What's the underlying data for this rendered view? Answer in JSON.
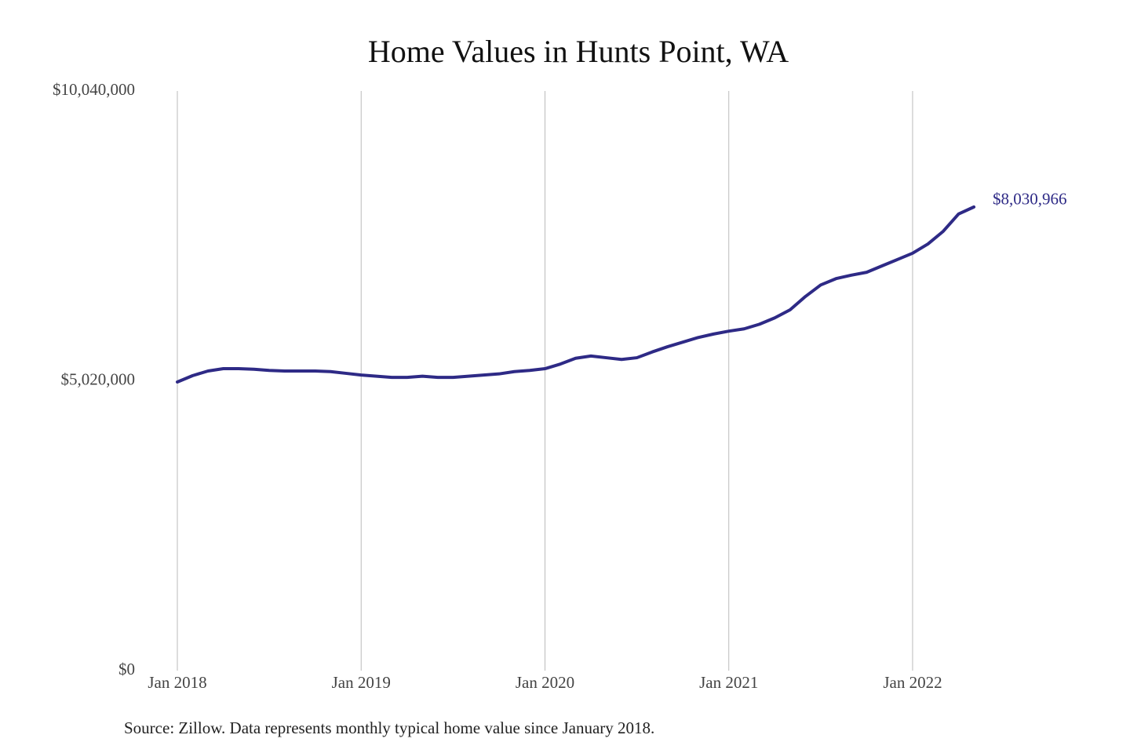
{
  "chart_data": {
    "type": "line",
    "title": "Home Values in Hunts Point, WA",
    "source": "Source: Zillow. Data represents monthly typical home value since January 2018.",
    "categories": [
      "Jan 2018",
      null,
      null,
      null,
      null,
      null,
      null,
      null,
      null,
      null,
      null,
      null,
      "Jan 2019",
      null,
      null,
      null,
      null,
      null,
      null,
      null,
      null,
      null,
      null,
      null,
      "Jan 2020",
      null,
      null,
      null,
      null,
      null,
      null,
      null,
      null,
      null,
      null,
      null,
      "Jan 2021",
      null,
      null,
      null,
      null,
      null,
      null,
      null,
      null,
      null,
      null,
      null,
      "Jan 2022",
      null,
      null,
      null,
      null
    ],
    "series": [
      {
        "color": "#2e2a86",
        "values": [
          5000000,
          5110000,
          5190000,
          5230000,
          5230000,
          5220000,
          5200000,
          5190000,
          5190000,
          5190000,
          5180000,
          5150000,
          5120000,
          5100000,
          5080000,
          5080000,
          5100000,
          5080000,
          5080000,
          5100000,
          5120000,
          5140000,
          5180000,
          5200000,
          5230000,
          5310000,
          5410000,
          5450000,
          5420000,
          5390000,
          5420000,
          5520000,
          5610000,
          5690000,
          5770000,
          5830000,
          5880000,
          5920000,
          6000000,
          6110000,
          6250000,
          6480000,
          6680000,
          6790000,
          6850000,
          6900000,
          7010000,
          7120000,
          7230000,
          7390000,
          7610000,
          7910000,
          8030966
        ],
        "value_labels": [
          null,
          null,
          null,
          null,
          null,
          null,
          null,
          null,
          null,
          null,
          null,
          null,
          null,
          null,
          null,
          null,
          null,
          null,
          null,
          null,
          null,
          null,
          null,
          null,
          null,
          null,
          null,
          null,
          null,
          null,
          null,
          null,
          null,
          null,
          null,
          null,
          null,
          null,
          null,
          null,
          null,
          null,
          null,
          null,
          null,
          null,
          null,
          null,
          null,
          null,
          null,
          null,
          "$8,030,966"
        ]
      }
    ],
    "ylim": [
      0,
      10040000
    ],
    "yticks": [
      {
        "value": 0,
        "label": "$0"
      },
      {
        "value": 5020000,
        "label": "$5,020,000"
      },
      {
        "value": 10040000,
        "label": "$10,040,000"
      }
    ],
    "grid": "x"
  }
}
